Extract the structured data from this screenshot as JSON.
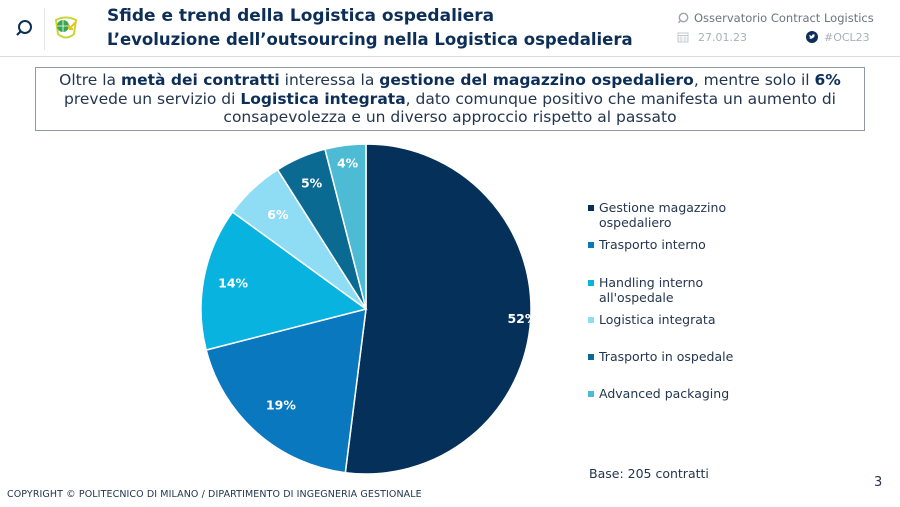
{
  "header": {
    "title": "Sfide e trend della Logistica ospedaliera",
    "subtitle": "L’evoluzione dell’outsourcing nella Logistica ospedaliera",
    "observatory": "Osservatorio Contract Logistics",
    "date": "27.01.23",
    "hashtag": "#OCL23",
    "icons": [
      "search-icon",
      "globe-logo-icon",
      "chat-bubble-icon",
      "calendar-icon",
      "twitter-icon"
    ]
  },
  "callout": {
    "segments": [
      {
        "text": "Oltre la ",
        "bold": false
      },
      {
        "text": "metà dei contratti",
        "bold": true
      },
      {
        "text": " interessa la ",
        "bold": false
      },
      {
        "text": "gestione del magazzino ospedaliero",
        "bold": true
      },
      {
        "text": ", mentre solo il ",
        "bold": false
      },
      {
        "text": "6%",
        "bold": true
      },
      {
        "text": " prevede un servizio di ",
        "bold": false
      },
      {
        "text": "Logistica integrata",
        "bold": true
      },
      {
        "text": ", dato comunque positivo che manifesta un aumento di consapevolezza e un diverso approccio rispetto al passato",
        "bold": false
      }
    ]
  },
  "chart_data": {
    "type": "pie",
    "title": "",
    "categories": [
      "Gestione magazzino ospedaliero",
      "Trasporto interno",
      "Handling interno all'ospedale",
      "Logistica integrata",
      "Trasporto in ospedale",
      "Advanced packaging"
    ],
    "values": [
      52,
      19,
      14,
      6,
      5,
      4
    ],
    "labels": [
      "52%",
      "19%",
      "14%",
      "6%",
      "5%",
      "4%"
    ],
    "colors": [
      "#04305a",
      "#0a78be",
      "#09b3e0",
      "#8fdcf5",
      "#0a6a91",
      "#4dbbd3"
    ],
    "start": "12 o'clock, clockwise",
    "legend_position": "right",
    "base_note": "Base: 205 contratti"
  },
  "footer": {
    "copyright": "COPYRIGHT © POLITECNICO DI MILANO / DIPARTIMENTO DI INGEGNERIA GESTIONALE",
    "page_number": "3"
  }
}
